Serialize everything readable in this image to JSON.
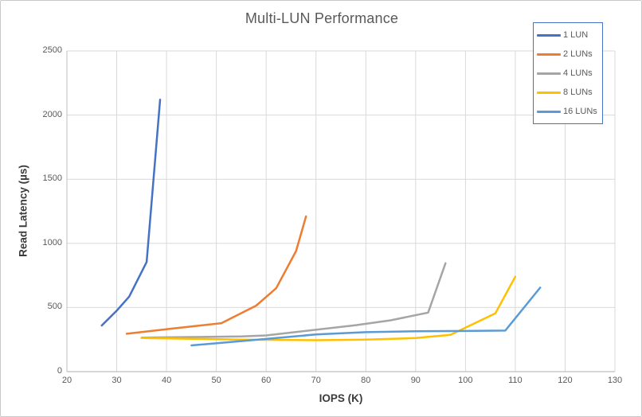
{
  "chart_data": {
    "type": "line",
    "title": "Multi-LUN Performance",
    "xlabel": "IOPS (K)",
    "ylabel": "Read Latency (µs)",
    "xlim": [
      20,
      130
    ],
    "ylim": [
      0,
      2500
    ],
    "x_ticks": [
      20,
      30,
      40,
      50,
      60,
      70,
      80,
      90,
      100,
      110,
      120,
      130
    ],
    "y_ticks": [
      0,
      500,
      1000,
      1500,
      2000,
      2500
    ],
    "grid": true,
    "legend_position": "top-right",
    "series": [
      {
        "name": "1 LUN",
        "color": "#4472C4",
        "points": [
          [
            27,
            360
          ],
          [
            30,
            475
          ],
          [
            32.5,
            585
          ],
          [
            36,
            855
          ],
          [
            37.4,
            1505
          ],
          [
            38.7,
            2120
          ]
        ]
      },
      {
        "name": "2 LUNs",
        "color": "#ED7D31",
        "points": [
          [
            32,
            295
          ],
          [
            41,
            335
          ],
          [
            51,
            378
          ],
          [
            58,
            515
          ],
          [
            62,
            650
          ],
          [
            66,
            940
          ],
          [
            68,
            1210
          ]
        ]
      },
      {
        "name": "4 LUNs",
        "color": "#A5A5A5",
        "points": [
          [
            35,
            265
          ],
          [
            45,
            270
          ],
          [
            55,
            275
          ],
          [
            60,
            282
          ],
          [
            78,
            362
          ],
          [
            85,
            400
          ],
          [
            92.5,
            460
          ],
          [
            96,
            845
          ]
        ]
      },
      {
        "name": "8 LUNs",
        "color": "#FFC000",
        "points": [
          [
            35,
            262
          ],
          [
            45,
            256
          ],
          [
            55,
            250
          ],
          [
            70,
            245
          ],
          [
            80,
            250
          ],
          [
            90,
            262
          ],
          [
            97,
            287
          ],
          [
            102,
            380
          ],
          [
            106,
            455
          ],
          [
            110,
            740
          ]
        ]
      },
      {
        "name": "16 LUNs",
        "color": "#5B9BD5",
        "points": [
          [
            45,
            205
          ],
          [
            55,
            238
          ],
          [
            70,
            290
          ],
          [
            80,
            308
          ],
          [
            90,
            315
          ],
          [
            100,
            317
          ],
          [
            108,
            320
          ],
          [
            115,
            655
          ]
        ]
      }
    ]
  },
  "colors": {
    "background": "#FFFFFF",
    "grid": "#D9D9D9",
    "axis_line": "#BFBFBF",
    "tick_text": "#595959",
    "title_text": "#595959",
    "axis_title_text": "#3B3B3B",
    "legend_text": "#595959",
    "legend_border": "#4472C4"
  }
}
